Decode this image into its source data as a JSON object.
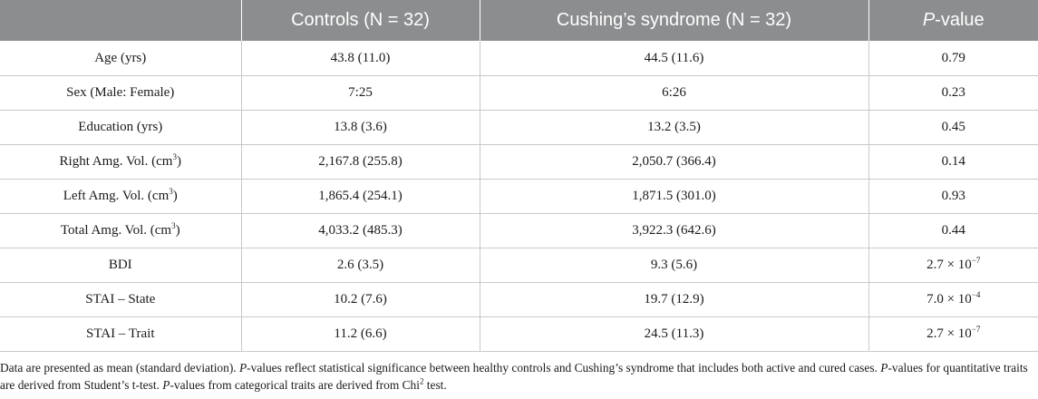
{
  "table": {
    "headers": {
      "empty": "",
      "controls": "Controls (N = 32)",
      "cushing": "Cushing’s syndrome (N = 32)",
      "pvalue_p": "P",
      "pvalue_rest": "-value"
    },
    "rows": [
      {
        "label": "Age (yrs)",
        "controls": "43.8 (11.0)",
        "cushing": "44.5 (11.6)",
        "p": "0.79"
      },
      {
        "label": "Sex (Male: Female)",
        "controls": "7:25",
        "cushing": "6:26",
        "p": "0.23"
      },
      {
        "label": "Education (yrs)",
        "controls": "13.8 (3.6)",
        "cushing": "13.2 (3.5)",
        "p": "0.45"
      },
      {
        "label": "Right Amg. Vol. (cm",
        "label_sup": "3",
        "label_end": ")",
        "controls": "2,167.8 (255.8)",
        "cushing": "2,050.7 (366.4)",
        "p": "0.14"
      },
      {
        "label": "Left Amg. Vol. (cm",
        "label_sup": "3",
        "label_end": ")",
        "controls": "1,865.4 (254.1)",
        "cushing": "1,871.5 (301.0)",
        "p": "0.93"
      },
      {
        "label": "Total Amg. Vol. (cm",
        "label_sup": "3",
        "label_end": ")",
        "controls": "4,033.2 (485.3)",
        "cushing": "3,922.3 (642.6)",
        "p": "0.44"
      },
      {
        "label": "BDI",
        "controls": "2.6 (3.5)",
        "cushing": "9.3 (5.6)",
        "p_base": "2.7 × 10",
        "p_exp": "−7"
      },
      {
        "label": "STAI – State",
        "controls": "10.2 (7.6)",
        "cushing": "19.7 (12.9)",
        "p_base": "7.0 × 10",
        "p_exp": "−4"
      },
      {
        "label": "STAI – Trait",
        "controls": "11.2 (6.6)",
        "cushing": "24.5 (11.3)",
        "p_base": "2.7 × 10",
        "p_exp": "−7"
      }
    ]
  },
  "footnote": {
    "s1": "Data are presented as mean (standard deviation). ",
    "p1": "P",
    "s2": "-values reflect statistical significance between healthy controls and Cushing’s syndrome that includes both active and cured cases. ",
    "p2": "P",
    "s3": "-values for quantitative traits are derived from Student’s t-test. ",
    "p3": "P",
    "s4": "-values from categorical traits are derived from Chi",
    "sup": "2",
    "s5": " test."
  }
}
